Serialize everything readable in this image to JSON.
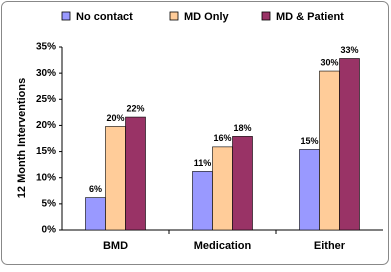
{
  "chart_data": {
    "type": "bar",
    "y_label": "12 Month Interventions",
    "categories": [
      "BMD",
      "Medication",
      "Either"
    ],
    "series": [
      {
        "name": "No contact",
        "color": "#9999ff",
        "values": [
          6.2,
          11.2,
          15.4
        ],
        "value_labels": [
          "6%",
          "11%",
          "15%"
        ]
      },
      {
        "name": "MD Only",
        "color": "#ffcc99",
        "values": [
          19.8,
          15.9,
          30.4
        ],
        "value_labels": [
          "20%",
          "16%",
          "30%"
        ]
      },
      {
        "name": "MD & Patient",
        "color": "#993366",
        "values": [
          21.6,
          17.9,
          32.8
        ],
        "value_labels": [
          "22%",
          "18%",
          "33%"
        ]
      }
    ],
    "ylim": [
      0,
      35
    ],
    "yticks": [
      {
        "value": 0,
        "label": "0%"
      },
      {
        "value": 5,
        "label": "5%"
      },
      {
        "value": 10,
        "label": "10%"
      },
      {
        "value": 15,
        "label": "15%"
      },
      {
        "value": 20,
        "label": "20%"
      },
      {
        "value": 25,
        "label": "25%"
      },
      {
        "value": 30,
        "label": "30%"
      },
      {
        "value": 35,
        "label": "35%"
      }
    ],
    "legend": "top"
  }
}
